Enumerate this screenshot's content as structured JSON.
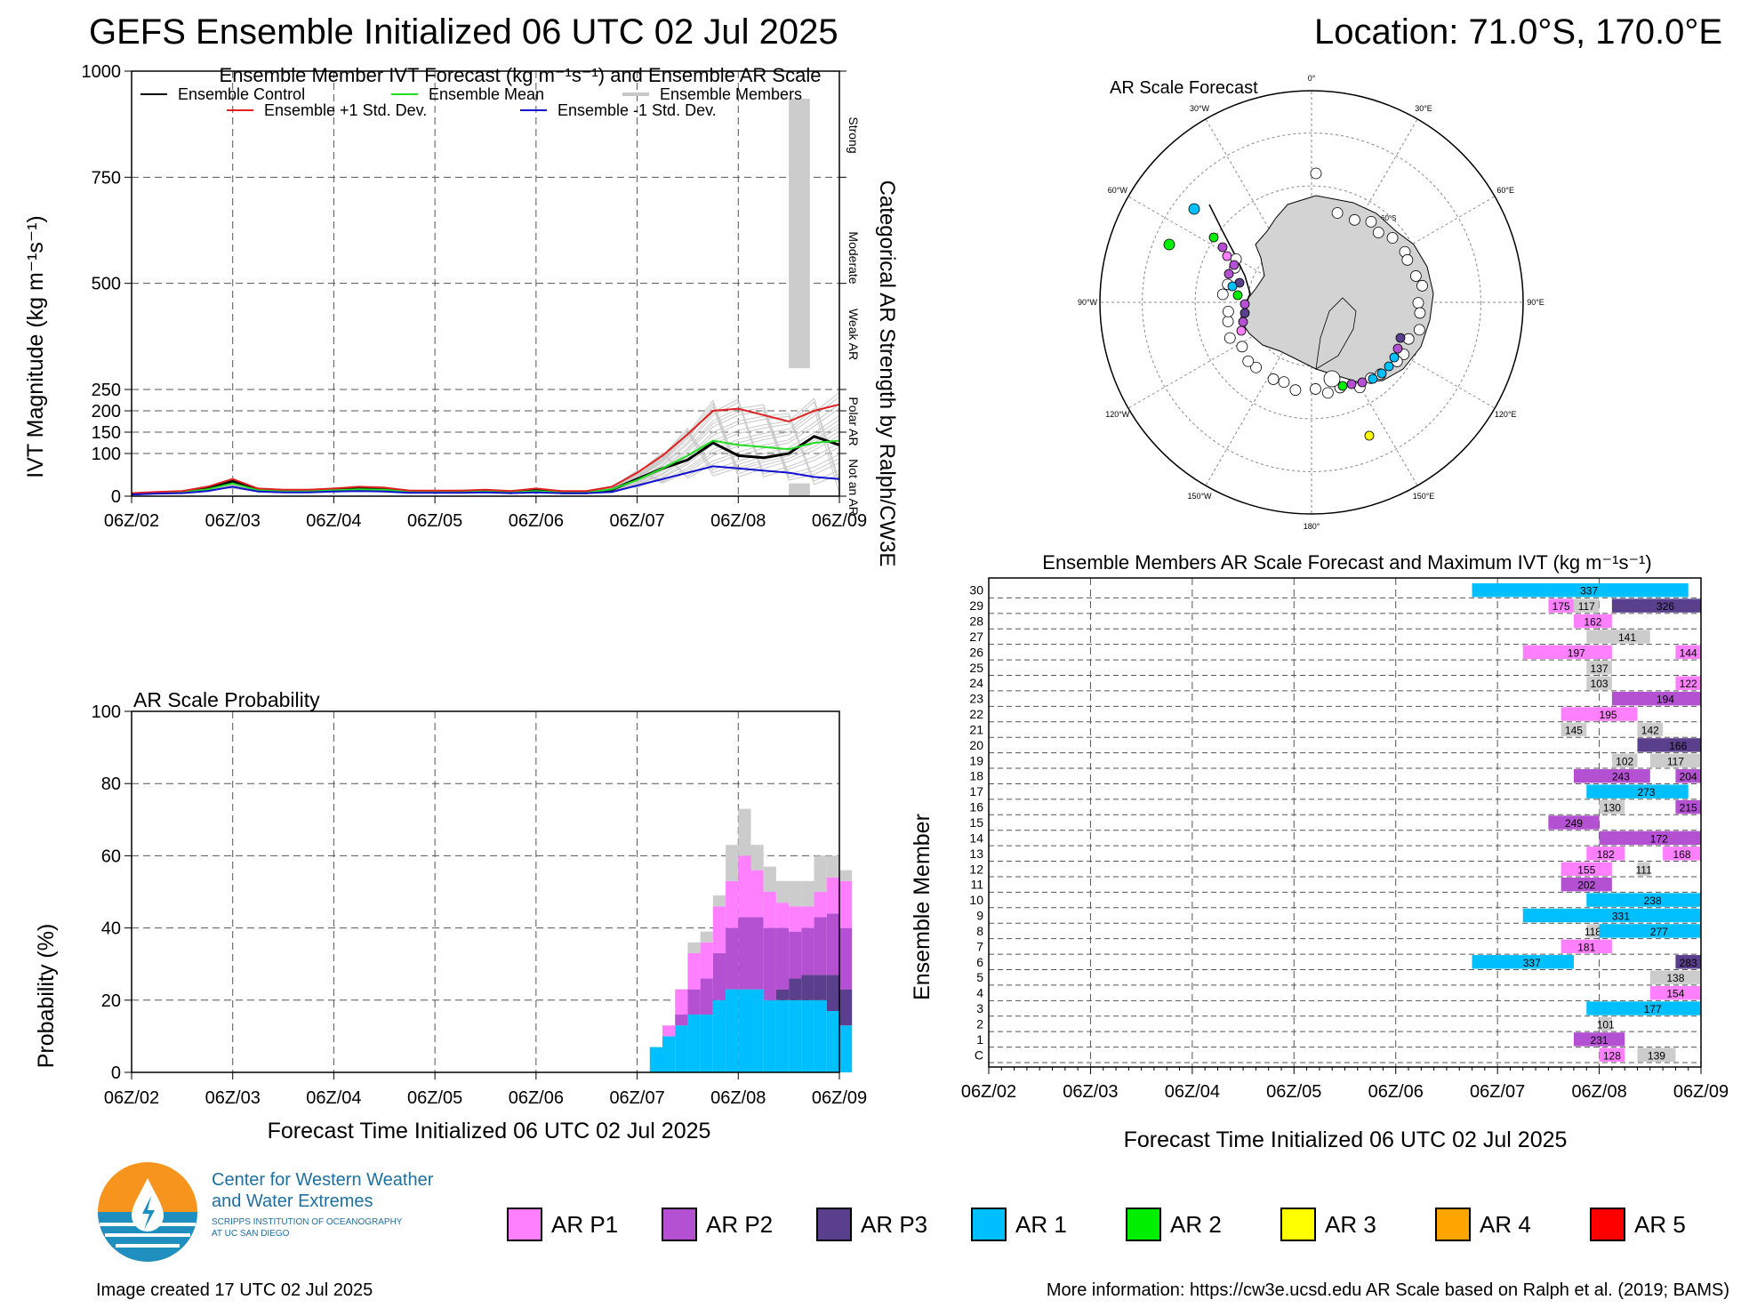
{
  "header": {
    "title": "GEFS Ensemble Initialized 06 UTC 02 Jul 2025",
    "location": "Location: 71.0°S, 170.0°E"
  },
  "chart_data": [
    {
      "id": "ivt-forecast",
      "type": "line",
      "title": "Ensemble Member IVT Forecast (kg m⁻¹s⁻¹) and Ensemble AR Scale",
      "ylabel": "IVT Magnitude (kg m⁻¹s⁻¹)",
      "right_label": "Categorical AR Strength by Ralph/CW3E",
      "categories_right": [
        "Strong",
        "Moderate",
        "Weak AR",
        "Polar AR",
        "Not an AR"
      ],
      "x_tick_labels": [
        "06Z/02",
        "06Z/03",
        "06Z/04",
        "06Z/05",
        "06Z/06",
        "06Z/07",
        "06Z/08",
        "06Z/09"
      ],
      "x_range_hours": [
        0,
        168
      ],
      "y_ticks": [
        0,
        100,
        150,
        200,
        250,
        500,
        750,
        1000
      ],
      "ylim": [
        0,
        1000
      ],
      "grid": true,
      "legend": [
        "Ensemble Control",
        "Ensemble Mean",
        "Ensemble Members",
        "Ensemble +1 Std. Dev.",
        "Ensemble -1 Std. Dev."
      ],
      "colors": {
        "control": "#000000",
        "mean": "#22dd22",
        "members": "#c8c8c8",
        "plus_std": "#e02020",
        "minus_std": "#1010d0",
        "box": "#cccccc"
      },
      "x_hours": [
        0,
        6,
        12,
        18,
        24,
        30,
        36,
        42,
        48,
        54,
        60,
        66,
        72,
        78,
        84,
        90,
        96,
        102,
        108,
        114,
        120,
        126,
        132,
        138,
        144,
        150,
        156,
        162,
        168
      ],
      "series": [
        {
          "name": "Ensemble Control",
          "key": "control",
          "values": [
            5,
            8,
            10,
            18,
            35,
            15,
            12,
            12,
            15,
            18,
            16,
            10,
            10,
            10,
            12,
            8,
            14,
            8,
            8,
            15,
            40,
            65,
            85,
            125,
            95,
            90,
            100,
            140,
            120
          ]
        },
        {
          "name": "Ensemble Mean",
          "key": "mean",
          "values": [
            5,
            8,
            9,
            16,
            30,
            14,
            12,
            12,
            14,
            16,
            15,
            10,
            10,
            10,
            11,
            9,
            12,
            9,
            9,
            16,
            38,
            65,
            95,
            130,
            120,
            115,
            110,
            125,
            130
          ]
        },
        {
          "name": "Ensemble +1 Std. Dev.",
          "key": "plus_std",
          "values": [
            7,
            10,
            12,
            22,
            40,
            18,
            15,
            15,
            18,
            22,
            20,
            13,
            13,
            13,
            15,
            12,
            18,
            12,
            12,
            22,
            55,
            95,
            145,
            200,
            205,
            190,
            175,
            200,
            215
          ]
        },
        {
          "name": "Ensemble -1 Std. Dev.",
          "key": "minus_std",
          "values": [
            4,
            6,
            7,
            12,
            22,
            11,
            9,
            9,
            11,
            12,
            11,
            8,
            8,
            8,
            9,
            7,
            9,
            7,
            7,
            10,
            25,
            40,
            55,
            70,
            65,
            60,
            55,
            45,
            40
          ]
        }
      ],
      "ar_box": {
        "hour_range": [
          156,
          161
        ],
        "whisker_low": 20,
        "box_low": 300,
        "box_high": 935,
        "whisker_high": 1000
      }
    },
    {
      "id": "ar-probability",
      "type": "area",
      "title": "AR Scale Probability",
      "ylabel": "Probability (%)",
      "xlabel": "Forecast Time Initialized 06 UTC 02 Jul 2025",
      "x_tick_labels": [
        "06Z/02",
        "06Z/03",
        "06Z/04",
        "06Z/05",
        "06Z/06",
        "06Z/07",
        "06Z/08",
        "06Z/09"
      ],
      "y_ticks": [
        0,
        20,
        40,
        60,
        80,
        100
      ],
      "ylim": [
        0,
        100
      ],
      "grid": true,
      "step_hours": 3,
      "start_hour": 123,
      "series": [
        {
          "name": "AR 1",
          "color": "#00bfff",
          "values": [
            7,
            10,
            13,
            16,
            16,
            20,
            23,
            23,
            23,
            20,
            20,
            20,
            20,
            20,
            17,
            13
          ]
        },
        {
          "name": "AR P3",
          "color": "#5a3f8c",
          "values": [
            0,
            0,
            0,
            0,
            0,
            0,
            0,
            0,
            0,
            0,
            3,
            6,
            7,
            7,
            10,
            10
          ]
        },
        {
          "name": "AR P2",
          "color": "#b450d2",
          "values": [
            0,
            0,
            3,
            7,
            10,
            13,
            17,
            20,
            20,
            20,
            17,
            13,
            13,
            16,
            17,
            17
          ]
        },
        {
          "name": "AR P1",
          "color": "#ff80ff",
          "values": [
            0,
            3,
            7,
            10,
            10,
            13,
            13,
            17,
            13,
            10,
            7,
            7,
            6,
            7,
            10,
            13
          ]
        },
        {
          "name": "Not an AR",
          "color": "#cccccc",
          "values": [
            0,
            0,
            0,
            3,
            3,
            3,
            10,
            13,
            7,
            7,
            6,
            7,
            7,
            10,
            6,
            3
          ]
        }
      ]
    },
    {
      "id": "members-ar-scale",
      "type": "heatmap",
      "title": "Ensemble Members AR Scale Forecast and Maximum IVT (kg m⁻¹s⁻¹)",
      "ylabel": "Ensemble Member",
      "xlabel": "Forecast Time Initialized 06 UTC 02 Jul 2025",
      "x_tick_labels": [
        "06Z/02",
        "06Z/03",
        "06Z/04",
        "06Z/05",
        "06Z/06",
        "06Z/07",
        "06Z/08",
        "06Z/09"
      ],
      "y_labels": [
        "C",
        "1",
        "2",
        "3",
        "4",
        "5",
        "6",
        "7",
        "8",
        "9",
        "10",
        "11",
        "12",
        "13",
        "14",
        "15",
        "16",
        "17",
        "18",
        "19",
        "20",
        "21",
        "22",
        "23",
        "24",
        "25",
        "26",
        "27",
        "28",
        "29",
        "30"
      ],
      "grid": true,
      "bars": [
        {
          "member": 0,
          "start": 144,
          "end": 150,
          "cat": "P1",
          "label": "128"
        },
        {
          "member": 0,
          "start": 153,
          "end": 162,
          "cat": "N",
          "label": "139"
        },
        {
          "member": 1,
          "start": 138,
          "end": 150,
          "cat": "P2",
          "label": "231"
        },
        {
          "member": 2,
          "start": 144,
          "end": 147,
          "cat": "N",
          "label": "101"
        },
        {
          "member": 3,
          "start": 141,
          "end": 168,
          "cat": "A1",
          "label": "177"
        },
        {
          "member": 4,
          "start": 156,
          "end": 168,
          "cat": "P1",
          "label": "154"
        },
        {
          "member": 5,
          "start": 156,
          "end": 168,
          "cat": "N",
          "label": "138"
        },
        {
          "member": 6,
          "start": 114,
          "end": 138,
          "cat": "A1",
          "label": "337"
        },
        {
          "member": 6,
          "start": 162,
          "end": 168,
          "cat": "P3",
          "label": "283"
        },
        {
          "member": 7,
          "start": 135,
          "end": 147,
          "cat": "P1",
          "label": "181"
        },
        {
          "member": 8,
          "start": 141,
          "end": 144,
          "cat": "N",
          "label": "118"
        },
        {
          "member": 8,
          "start": 144,
          "end": 168,
          "cat": "A1",
          "label": "277"
        },
        {
          "member": 9,
          "start": 126,
          "end": 168,
          "cat": "A1",
          "label": "331"
        },
        {
          "member": 10,
          "start": 141,
          "end": 168,
          "cat": "A1",
          "label": "238"
        },
        {
          "member": 11,
          "start": 135,
          "end": 147,
          "cat": "P2",
          "label": "202"
        },
        {
          "member": 12,
          "start": 135,
          "end": 147,
          "cat": "P1",
          "label": "155"
        },
        {
          "member": 12,
          "start": 153,
          "end": 156,
          "cat": "N",
          "label": "111"
        },
        {
          "member": 13,
          "start": 141,
          "end": 150,
          "cat": "P1",
          "label": "182"
        },
        {
          "member": 13,
          "start": 159,
          "end": 168,
          "cat": "P1",
          "label": "168"
        },
        {
          "member": 14,
          "start": 144,
          "end": 168,
          "cat": "P2",
          "label": "172"
        },
        {
          "member": 15,
          "start": 132,
          "end": 144,
          "cat": "P2",
          "label": "249"
        },
        {
          "member": 16,
          "start": 144,
          "end": 150,
          "cat": "N",
          "label": "130"
        },
        {
          "member": 16,
          "start": 162,
          "end": 168,
          "cat": "P2",
          "label": "215"
        },
        {
          "member": 17,
          "start": 141,
          "end": 165,
          "cat": "A1",
          "label": "273"
        },
        {
          "member": 18,
          "start": 138,
          "end": 156,
          "cat": "P2",
          "label": "243"
        },
        {
          "member": 18,
          "start": 162,
          "end": 168,
          "cat": "P2",
          "label": "204"
        },
        {
          "member": 19,
          "start": 147,
          "end": 153,
          "cat": "N",
          "label": "102"
        },
        {
          "member": 19,
          "start": 156,
          "end": 168,
          "cat": "N",
          "label": "117"
        },
        {
          "member": 20,
          "start": 153,
          "end": 168,
          "cat": "P3",
          "label": "166"
        },
        {
          "member": 21,
          "start": 135,
          "end": 141,
          "cat": "N",
          "label": "145"
        },
        {
          "member": 21,
          "start": 153,
          "end": 159,
          "cat": "N",
          "label": "142"
        },
        {
          "member": 22,
          "start": 135,
          "end": 153,
          "cat": "P1",
          "label": "195"
        },
        {
          "member": 23,
          "start": 147,
          "end": 168,
          "cat": "P2",
          "label": "194"
        },
        {
          "member": 24,
          "start": 141,
          "end": 147,
          "cat": "N",
          "label": "103"
        },
        {
          "member": 24,
          "start": 162,
          "end": 168,
          "cat": "P1",
          "label": "122"
        },
        {
          "member": 25,
          "start": 141,
          "end": 147,
          "cat": "N",
          "label": "137"
        },
        {
          "member": 26,
          "start": 126,
          "end": 147,
          "cat": "P1",
          "label": "197"
        },
        {
          "member": 26,
          "start": 162,
          "end": 168,
          "cat": "P1",
          "label": "144"
        },
        {
          "member": 27,
          "start": 141,
          "end": 156,
          "cat": "N",
          "label": "141"
        },
        {
          "member": 27,
          "start": 0,
          "end": 0,
          "cat": "N",
          "label": ""
        },
        {
          "member": 28,
          "start": 138,
          "end": 147,
          "cat": "P1",
          "label": "162"
        },
        {
          "member": 29,
          "start": 132,
          "end": 138,
          "cat": "P1",
          "label": "175"
        },
        {
          "member": 29,
          "start": 138,
          "end": 144,
          "cat": "N",
          "label": "117"
        },
        {
          "member": 29,
          "start": 147,
          "end": 168,
          "cat": "P3",
          "label": "326"
        },
        {
          "member": 30,
          "start": 114,
          "end": 165,
          "cat": "A1",
          "label": "337"
        }
      ]
    }
  ],
  "map": {
    "title": "AR Scale Forecast",
    "lon_labels": [
      "0°",
      "30°E",
      "60°E",
      "90°E",
      "120°E",
      "150°E",
      "180°",
      "150°W",
      "120°W",
      "90°W",
      "60°W",
      "30°W"
    ],
    "lat_labels": [
      "60°S",
      "70°S",
      "80°S"
    ],
    "land_color": "#d3d3d3"
  },
  "category_colors": {
    "N": "#cccccc",
    "P1": "#ff80ff",
    "P2": "#b450d2",
    "P3": "#5a3f8c",
    "A1": "#00bfff",
    "A2": "#00ee00",
    "A3": "#ffff00",
    "A4": "#ffa500",
    "A5": "#ff0000"
  },
  "legend": [
    {
      "label": "AR P1",
      "color": "#ff80ff"
    },
    {
      "label": "AR P2",
      "color": "#b450d2"
    },
    {
      "label": "AR P3",
      "color": "#5a3f8c"
    },
    {
      "label": "AR 1",
      "color": "#00bfff"
    },
    {
      "label": "AR 2",
      "color": "#00ee00"
    },
    {
      "label": "AR 3",
      "color": "#ffff00"
    },
    {
      "label": "AR 4",
      "color": "#ffa500"
    },
    {
      "label": "AR 5",
      "color": "#ff0000"
    }
  ],
  "logo": {
    "line1": "Center for Western Weather",
    "line2": "and Water Extremes",
    "line3": "SCRIPPS INSTITUTION OF OCEANOGRAPHY",
    "line4": "AT UC SAN DIEGO"
  },
  "footer": {
    "created": "Image created 17 UTC 02 Jul 2025",
    "info": "More information: https://cw3e.ucsd.edu AR Scale based on Ralph et al. (2019; BAMS)"
  }
}
